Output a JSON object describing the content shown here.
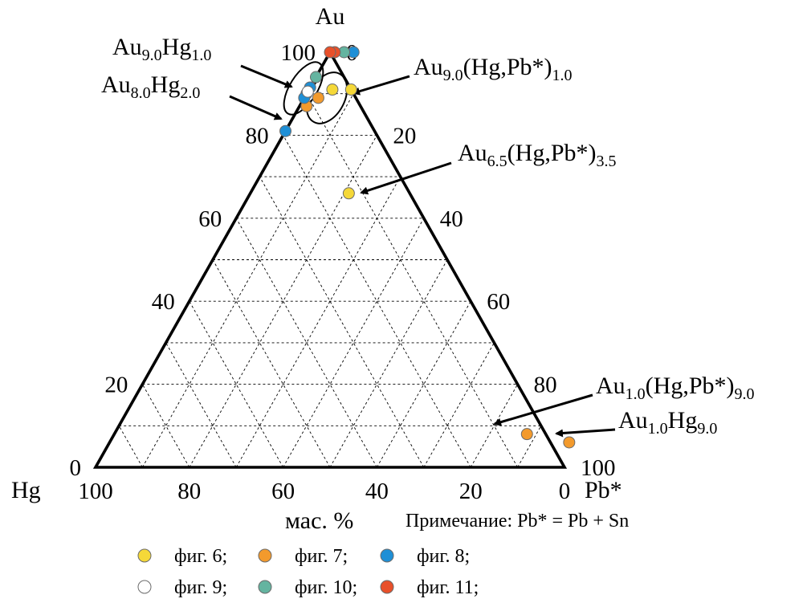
{
  "chart_data": {
    "type": "ternary-scatter",
    "title": "",
    "vertices": {
      "top": "Au",
      "left": "Hg",
      "right": "Pb*"
    },
    "unit_label": "мас. %",
    "note": "Примечание: Pb* = Pb + Sn",
    "axis_ticks": {
      "left_side": [
        "0",
        "20",
        "40",
        "60",
        "80",
        "100"
      ],
      "right_side": [
        "0",
        "20",
        "40",
        "60",
        "80",
        "100"
      ],
      "bottom": [
        "100",
        "80",
        "60",
        "40",
        "20",
        "0"
      ]
    },
    "grid_step": 10,
    "series": [
      {
        "name": "фиг. 6",
        "color": "#f5d838",
        "points": [
          {
            "Au": 91,
            "Pb": 5
          },
          {
            "Au": 91,
            "Pb": 9
          },
          {
            "Au": 66,
            "Pb": 21
          }
        ]
      },
      {
        "name": "фиг. 7",
        "color": "#f39a2c",
        "points": [
          {
            "Au": 89,
            "Pb": 3
          },
          {
            "Au": 87,
            "Pb": 1.5
          },
          {
            "Au": 8,
            "Pb": 88
          },
          {
            "Au": 6,
            "Pb": 98
          }
        ]
      },
      {
        "name": "фиг. 8",
        "color": "#1e8fd6",
        "points": [
          {
            "Au": 100,
            "Pb": 5
          },
          {
            "Au": 91.5,
            "Pb": 0
          },
          {
            "Au": 90,
            "Pb": 0
          },
          {
            "Au": 89,
            "Pb": 0
          },
          {
            "Au": 81,
            "Pb": 0
          }
        ]
      },
      {
        "name": "фиг. 9",
        "color": "#ffffff",
        "points": [
          {
            "Au": 90.5,
            "Pb": 0
          }
        ]
      },
      {
        "name": "фиг. 10",
        "color": "#64b4a0",
        "points": [
          {
            "Au": 100,
            "Pb": 3
          },
          {
            "Au": 94,
            "Pb": 0
          }
        ]
      },
      {
        "name": "фиг. 11",
        "color": "#e8502a",
        "points": [
          {
            "Au": 100,
            "Pb": 1
          },
          {
            "Au": 100,
            "Pb": 0
          }
        ]
      }
    ],
    "annotations": [
      {
        "id": "au9-hg1",
        "base": "Au",
        "sub1": "9.0",
        "mid": "Hg",
        "sub2": "1.0"
      },
      {
        "id": "au8-hg2",
        "base": "Au",
        "sub1": "8.0",
        "mid": "Hg",
        "sub2": "2.0"
      },
      {
        "id": "au9-hgpb1",
        "base": "Au",
        "sub1": "9.0",
        "mid": "(Hg,Pb*)",
        "sub2": "1.0"
      },
      {
        "id": "au65-hgpb35",
        "base": "Au",
        "sub1": "6.5",
        "mid": "(Hg,Pb*)",
        "sub2": "3.5"
      },
      {
        "id": "au1-hgpb9",
        "base": "Au",
        "sub1": "1.0",
        "mid": "(Hg,Pb*)",
        "sub2": "9.0"
      },
      {
        "id": "au1-hg9",
        "base": "Au",
        "sub1": "1.0",
        "mid": "Hg",
        "sub2": "9.0"
      }
    ]
  }
}
